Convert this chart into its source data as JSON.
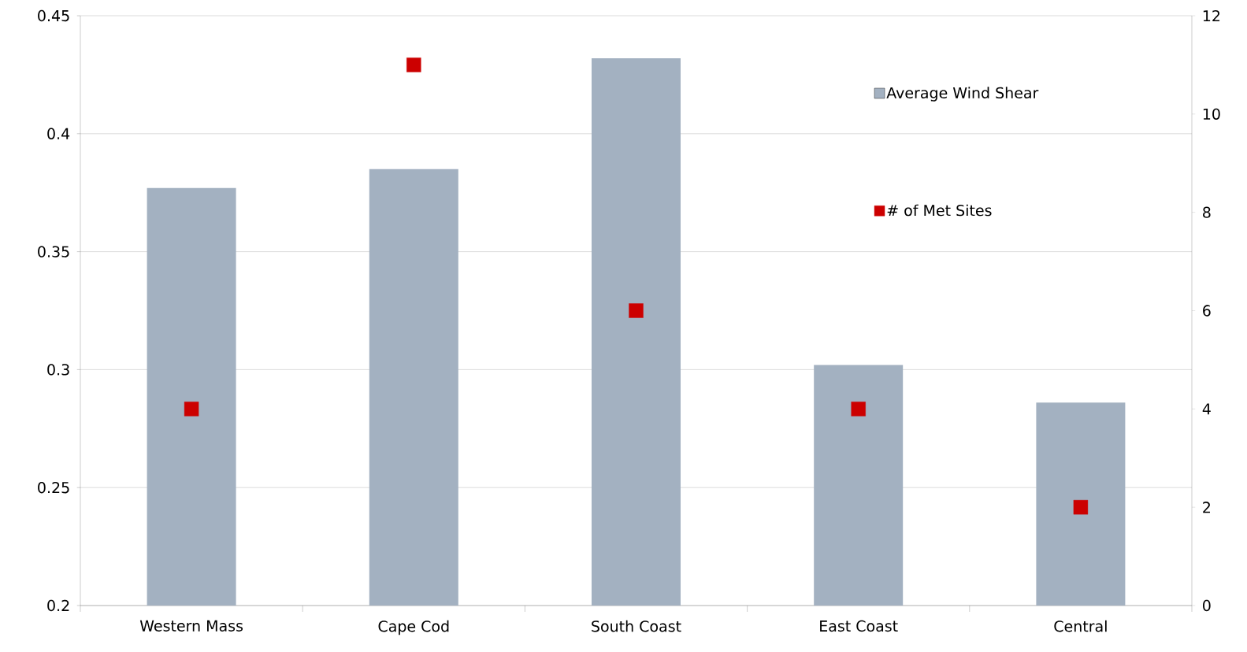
{
  "chart_data": {
    "type": "bar",
    "categories": [
      "Western Mass",
      "Cape Cod",
      "South Coast",
      "East Coast",
      "Central"
    ],
    "series": [
      {
        "name": "Average Wind Shear",
        "color": "#a3b1c1",
        "values": [
          0.377,
          0.385,
          0.432,
          0.302,
          0.286
        ]
      },
      {
        "name": "# of Met Sites",
        "type": "scatter",
        "axis": "y2",
        "color": "#cc0000",
        "marker": "square",
        "values": [
          4,
          11,
          6,
          4,
          2
        ]
      }
    ],
    "ylim": [
      0.2,
      0.45
    ],
    "yticks": [
      0.2,
      0.25,
      0.3,
      0.35,
      0.4,
      0.45
    ],
    "y2lim": [
      0,
      12
    ],
    "y2ticks": [
      0,
      2,
      4,
      6,
      8,
      10,
      12
    ],
    "grid": "y",
    "legend": "top right"
  }
}
